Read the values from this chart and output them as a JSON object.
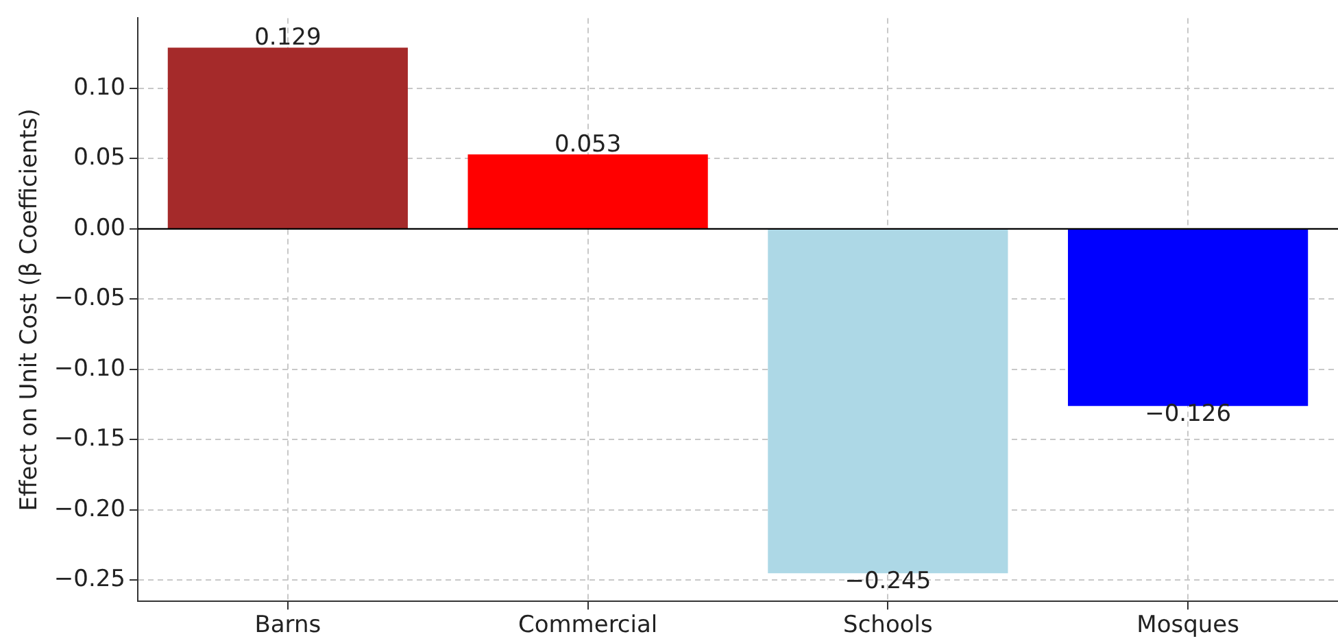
{
  "chart_data": {
    "type": "bar",
    "ylabel": "Effect on Unit Cost (β Coefficients)",
    "categories": [
      "Barns",
      "Commercial",
      "Schools",
      "Mosques"
    ],
    "values": [
      0.129,
      0.053,
      -0.245,
      -0.126
    ],
    "colors": [
      "#a52a2a",
      "#ff0000",
      "#add8e6",
      "#0000ff"
    ],
    "value_labels": [
      "0.129",
      "0.053",
      "−0.245",
      "−0.126"
    ],
    "ylim": [
      -0.265,
      0.15
    ],
    "yticks": [
      {
        "value": -0.25,
        "label": "−0.25"
      },
      {
        "value": -0.2,
        "label": "−0.20"
      },
      {
        "value": -0.15,
        "label": "−0.15"
      },
      {
        "value": -0.1,
        "label": "−0.10"
      },
      {
        "value": -0.05,
        "label": "−0.05"
      },
      {
        "value": 0,
        "label": "0.00"
      },
      {
        "value": 0.05,
        "label": "0.05"
      },
      {
        "value": 0.1,
        "label": "0.10"
      }
    ],
    "ref_lines": [
      {
        "axis": "y",
        "value": 0,
        "color": "#000000"
      }
    ],
    "grid": true,
    "legend": false
  }
}
